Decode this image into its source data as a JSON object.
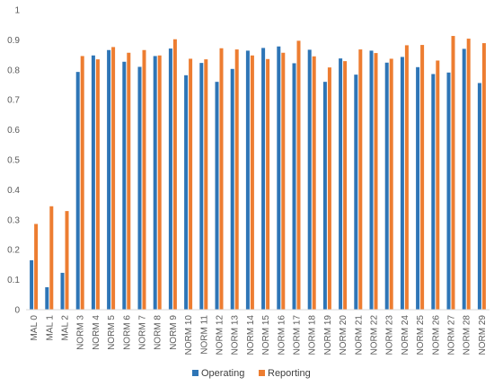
{
  "chart_data": {
    "type": "bar",
    "title": "",
    "xlabel": "",
    "ylabel": "",
    "ylim": [
      0,
      1
    ],
    "yticks": [
      "0",
      "0.1",
      "0.2",
      "0.3",
      "0.4",
      "0.5",
      "0.6",
      "0.7",
      "0.8",
      "0.9",
      "1"
    ],
    "grid": false,
    "legend_position": "bottom",
    "categories": [
      "MAL 0",
      "MAL 1",
      "MAL 2",
      "NORM 3",
      "NORM 4",
      "NORM 5",
      "NORM 6",
      "NORM 7",
      "NORM 8",
      "NORM 9",
      "NORM 10",
      "NORM 11",
      "NORM 12",
      "NORM 13",
      "NORM 14",
      "NORM 15",
      "NORM 16",
      "NORM 17",
      "NORM 18",
      "NORM 19",
      "NORM 20",
      "NORM 21",
      "NORM 22",
      "NORM 23",
      "NORM 24",
      "NORM 25",
      "NORM 26",
      "NORM 27",
      "NORM 28",
      "NORM 29"
    ],
    "series": [
      {
        "name": "Operating",
        "color": "#2e75b6",
        "values": [
          0.165,
          0.075,
          0.123,
          0.793,
          0.848,
          0.866,
          0.827,
          0.81,
          0.846,
          0.871,
          0.782,
          0.823,
          0.76,
          0.803,
          0.864,
          0.873,
          0.878,
          0.822,
          0.867,
          0.76,
          0.838,
          0.784,
          0.864,
          0.824,
          0.843,
          0.809,
          0.786,
          0.791,
          0.87,
          0.756
        ]
      },
      {
        "name": "Reporting",
        "color": "#ed7d31",
        "values": [
          0.286,
          0.345,
          0.329,
          0.846,
          0.835,
          0.876,
          0.857,
          0.866,
          0.848,
          0.902,
          0.837,
          0.835,
          0.872,
          0.868,
          0.848,
          0.836,
          0.857,
          0.897,
          0.845,
          0.808,
          0.829,
          0.868,
          0.856,
          0.837,
          0.882,
          0.883,
          0.831,
          0.913,
          0.904,
          0.889
        ]
      }
    ]
  }
}
